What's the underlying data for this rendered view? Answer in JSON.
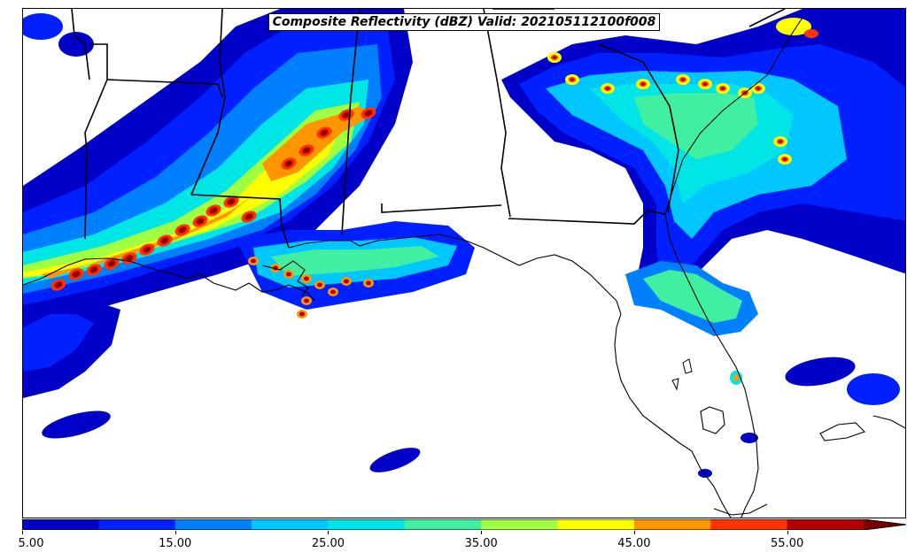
{
  "title": "Composite Reflectivity (dBZ) Valid: 202105112100f008",
  "colorbar": {
    "levels": [
      5,
      10,
      15,
      20,
      25,
      30,
      35,
      40,
      45,
      50,
      55
    ],
    "colors": [
      "#0000c8",
      "#0020ff",
      "#0080ff",
      "#00c8ff",
      "#00e6e6",
      "#40f0a0",
      "#a0ff40",
      "#ffff00",
      "#ff9600",
      "#ff3200",
      "#b40000"
    ],
    "extend_color": "#780000",
    "tick_labels": [
      "5.00",
      "15.00",
      "25.00",
      "35.00",
      "45.00",
      "55.00"
    ],
    "tick_values": [
      5,
      15,
      25,
      35,
      45,
      55
    ]
  },
  "map": {
    "colors": {
      "background": "#ffffff",
      "borders": "#000000"
    }
  }
}
